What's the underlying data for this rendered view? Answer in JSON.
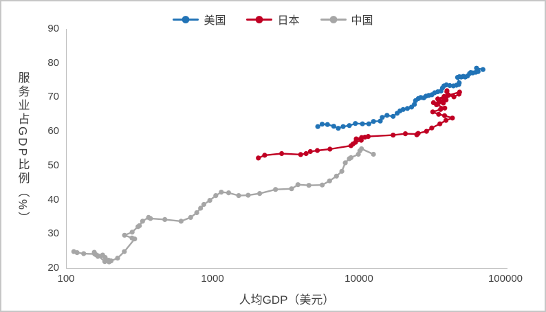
{
  "colors": {
    "us_blue": "#2173B6",
    "japan_red": "#C00023",
    "china_gray": "#A6A6A6",
    "axis_line": "#BFBFBF",
    "text": "#404040",
    "background": "#FFFFFF"
  },
  "chart_data": {
    "type": "line",
    "title": "",
    "xlabel": "人均GDP（美元）",
    "ylabel": "服务业占GDP比例（%）",
    "x_scale": "log",
    "xlim": [
      100,
      100000
    ],
    "ylim": [
      20,
      90
    ],
    "x_ticks": [
      "100",
      "1000",
      "10000",
      "100000"
    ],
    "y_ticks": [
      "20",
      "30",
      "40",
      "50",
      "60",
      "70",
      "80",
      "90"
    ],
    "grid": false,
    "legend_position": "top-center",
    "marker": "circle",
    "series": [
      {
        "name": "美国",
        "color": "#2173B6",
        "points": [
          [
            5234,
            61.4
          ],
          [
            5609,
            62.1
          ],
          [
            6094,
            62.0
          ],
          [
            6726,
            61.5
          ],
          [
            7226,
            60.9
          ],
          [
            7801,
            61.4
          ],
          [
            8592,
            61.7
          ],
          [
            9453,
            62.3
          ],
          [
            10565,
            62.2
          ],
          [
            11674,
            62.2
          ],
          [
            12575,
            62.9
          ],
          [
            13976,
            63.0
          ],
          [
            14434,
            64.1
          ],
          [
            15544,
            64.7
          ],
          [
            17121,
            64.4
          ],
          [
            18237,
            65.3
          ],
          [
            19071,
            66.0
          ],
          [
            20039,
            66.4
          ],
          [
            21417,
            66.7
          ],
          [
            22857,
            67.1
          ],
          [
            23889,
            67.9
          ],
          [
            24342,
            69.0
          ],
          [
            25419,
            69.6
          ],
          [
            26387,
            69.9
          ],
          [
            27695,
            69.8
          ],
          [
            28691,
            70.3
          ],
          [
            29968,
            70.5
          ],
          [
            31459,
            70.7
          ],
          [
            32854,
            71.3
          ],
          [
            34515,
            71.6
          ],
          [
            36330,
            71.8
          ],
          [
            37134,
            72.7
          ],
          [
            38023,
            73.3
          ],
          [
            39496,
            73.6
          ],
          [
            41713,
            73.4
          ],
          [
            44114,
            73.3
          ],
          [
            46298,
            73.5
          ],
          [
            47976,
            73.7
          ],
          [
            48383,
            74.2
          ],
          [
            47100,
            75.8
          ],
          [
            48467,
            76.0
          ],
          [
            49883,
            75.9
          ],
          [
            51603,
            76.1
          ],
          [
            53107,
            75.9
          ],
          [
            55050,
            76.2
          ],
          [
            56863,
            76.9
          ],
          [
            57904,
            77.2
          ],
          [
            59908,
            77.1
          ],
          [
            62805,
            77.3
          ],
          [
            65120,
            77.5
          ],
          [
            63530,
            78.5
          ],
          [
            70249,
            78.1
          ]
        ]
      },
      {
        "name": "日本",
        "color": "#C00023",
        "points": [
          [
            2056,
            52.2
          ],
          [
            2272,
            53.0
          ],
          [
            2967,
            53.5
          ],
          [
            3998,
            53.2
          ],
          [
            4354,
            53.5
          ],
          [
            4659,
            54.1
          ],
          [
            5197,
            54.4
          ],
          [
            6335,
            54.8
          ],
          [
            8821,
            55.8
          ],
          [
            9105,
            56.3
          ],
          [
            9465,
            56.8
          ],
          [
            10361,
            57.4
          ],
          [
            9578,
            57.8
          ],
          [
            10425,
            58.2
          ],
          [
            10985,
            58.3
          ],
          [
            11577,
            58.5
          ],
          [
            17112,
            58.9
          ],
          [
            20745,
            59.3
          ],
          [
            25059,
            59.2
          ],
          [
            24813,
            59.0
          ],
          [
            25371,
            59.4
          ],
          [
            28915,
            60.0
          ],
          [
            31414,
            61.0
          ],
          [
            35681,
            62.2
          ],
          [
            39268,
            63.2
          ],
          [
            43440,
            63.9
          ],
          [
            38436,
            64.6
          ],
          [
            35021,
            65.0
          ],
          [
            31902,
            65.7
          ],
          [
            36026,
            66.4
          ],
          [
            38532,
            66.8
          ],
          [
            33846,
            67.8
          ],
          [
            32289,
            68.4
          ],
          [
            34808,
            68.3
          ],
          [
            37688,
            68.3
          ],
          [
            37217,
            68.7
          ],
          [
            35433,
            69.0
          ],
          [
            35275,
            68.9
          ],
          [
            39339,
            69.2
          ],
          [
            40855,
            70.6
          ],
          [
            44507,
            70.1
          ],
          [
            48168,
            70.9
          ],
          [
            48603,
            71.5
          ],
          [
            40454,
            70.5
          ],
          [
            38109,
            70.2
          ],
          [
            34524,
            69.5
          ],
          [
            38794,
            69.8
          ],
          [
            38386,
            69.6
          ],
          [
            39159,
            69.9
          ],
          [
            40458,
            70.7
          ],
          [
            39918,
            71.9
          ],
          [
            39803,
            71.6
          ]
        ]
      },
      {
        "name": "中国",
        "color": "#A6A6A6",
        "points": [
          [
            113,
            24.8
          ],
          [
            119,
            24.5
          ],
          [
            132,
            24.2
          ],
          [
            157,
            24.1
          ],
          [
            160,
            23.9
          ],
          [
            178,
            23.8
          ],
          [
            165,
            23.4
          ],
          [
            185,
            23.1
          ],
          [
            156,
            24.6
          ],
          [
            184,
            21.9
          ],
          [
            195,
            22.3
          ],
          [
            197,
            21.8
          ],
          [
            203,
            22.1
          ],
          [
            225,
            22.9
          ],
          [
            250,
            24.8
          ],
          [
            294,
            28.5
          ],
          [
            282,
            28.8
          ],
          [
            251,
            29.6
          ],
          [
            283,
            30.5
          ],
          [
            310,
            32.1
          ],
          [
            317,
            32.4
          ],
          [
            333,
            33.7
          ],
          [
            366,
            34.8
          ],
          [
            377,
            34.5
          ],
          [
            473,
            34.2
          ],
          [
            610,
            33.7
          ],
          [
            709,
            34.8
          ],
          [
            781,
            36.2
          ],
          [
            829,
            37.5
          ],
          [
            873,
            38.6
          ],
          [
            959,
            39.8
          ],
          [
            1053,
            41.2
          ],
          [
            1149,
            42.2
          ],
          [
            1289,
            42.0
          ],
          [
            1509,
            41.2
          ],
          [
            1753,
            41.3
          ],
          [
            2099,
            41.8
          ],
          [
            2694,
            43.0
          ],
          [
            3468,
            43.2
          ],
          [
            3832,
            44.4
          ],
          [
            4550,
            44.2
          ],
          [
            5614,
            44.3
          ],
          [
            6300,
            45.5
          ],
          [
            7020,
            46.9
          ],
          [
            7636,
            48.3
          ],
          [
            8067,
            50.8
          ],
          [
            8600,
            52.0
          ],
          [
            8817,
            52.3
          ],
          [
            9905,
            53.3
          ],
          [
            10143,
            54.3
          ],
          [
            10409,
            54.9
          ],
          [
            12556,
            53.3
          ]
        ]
      }
    ]
  }
}
